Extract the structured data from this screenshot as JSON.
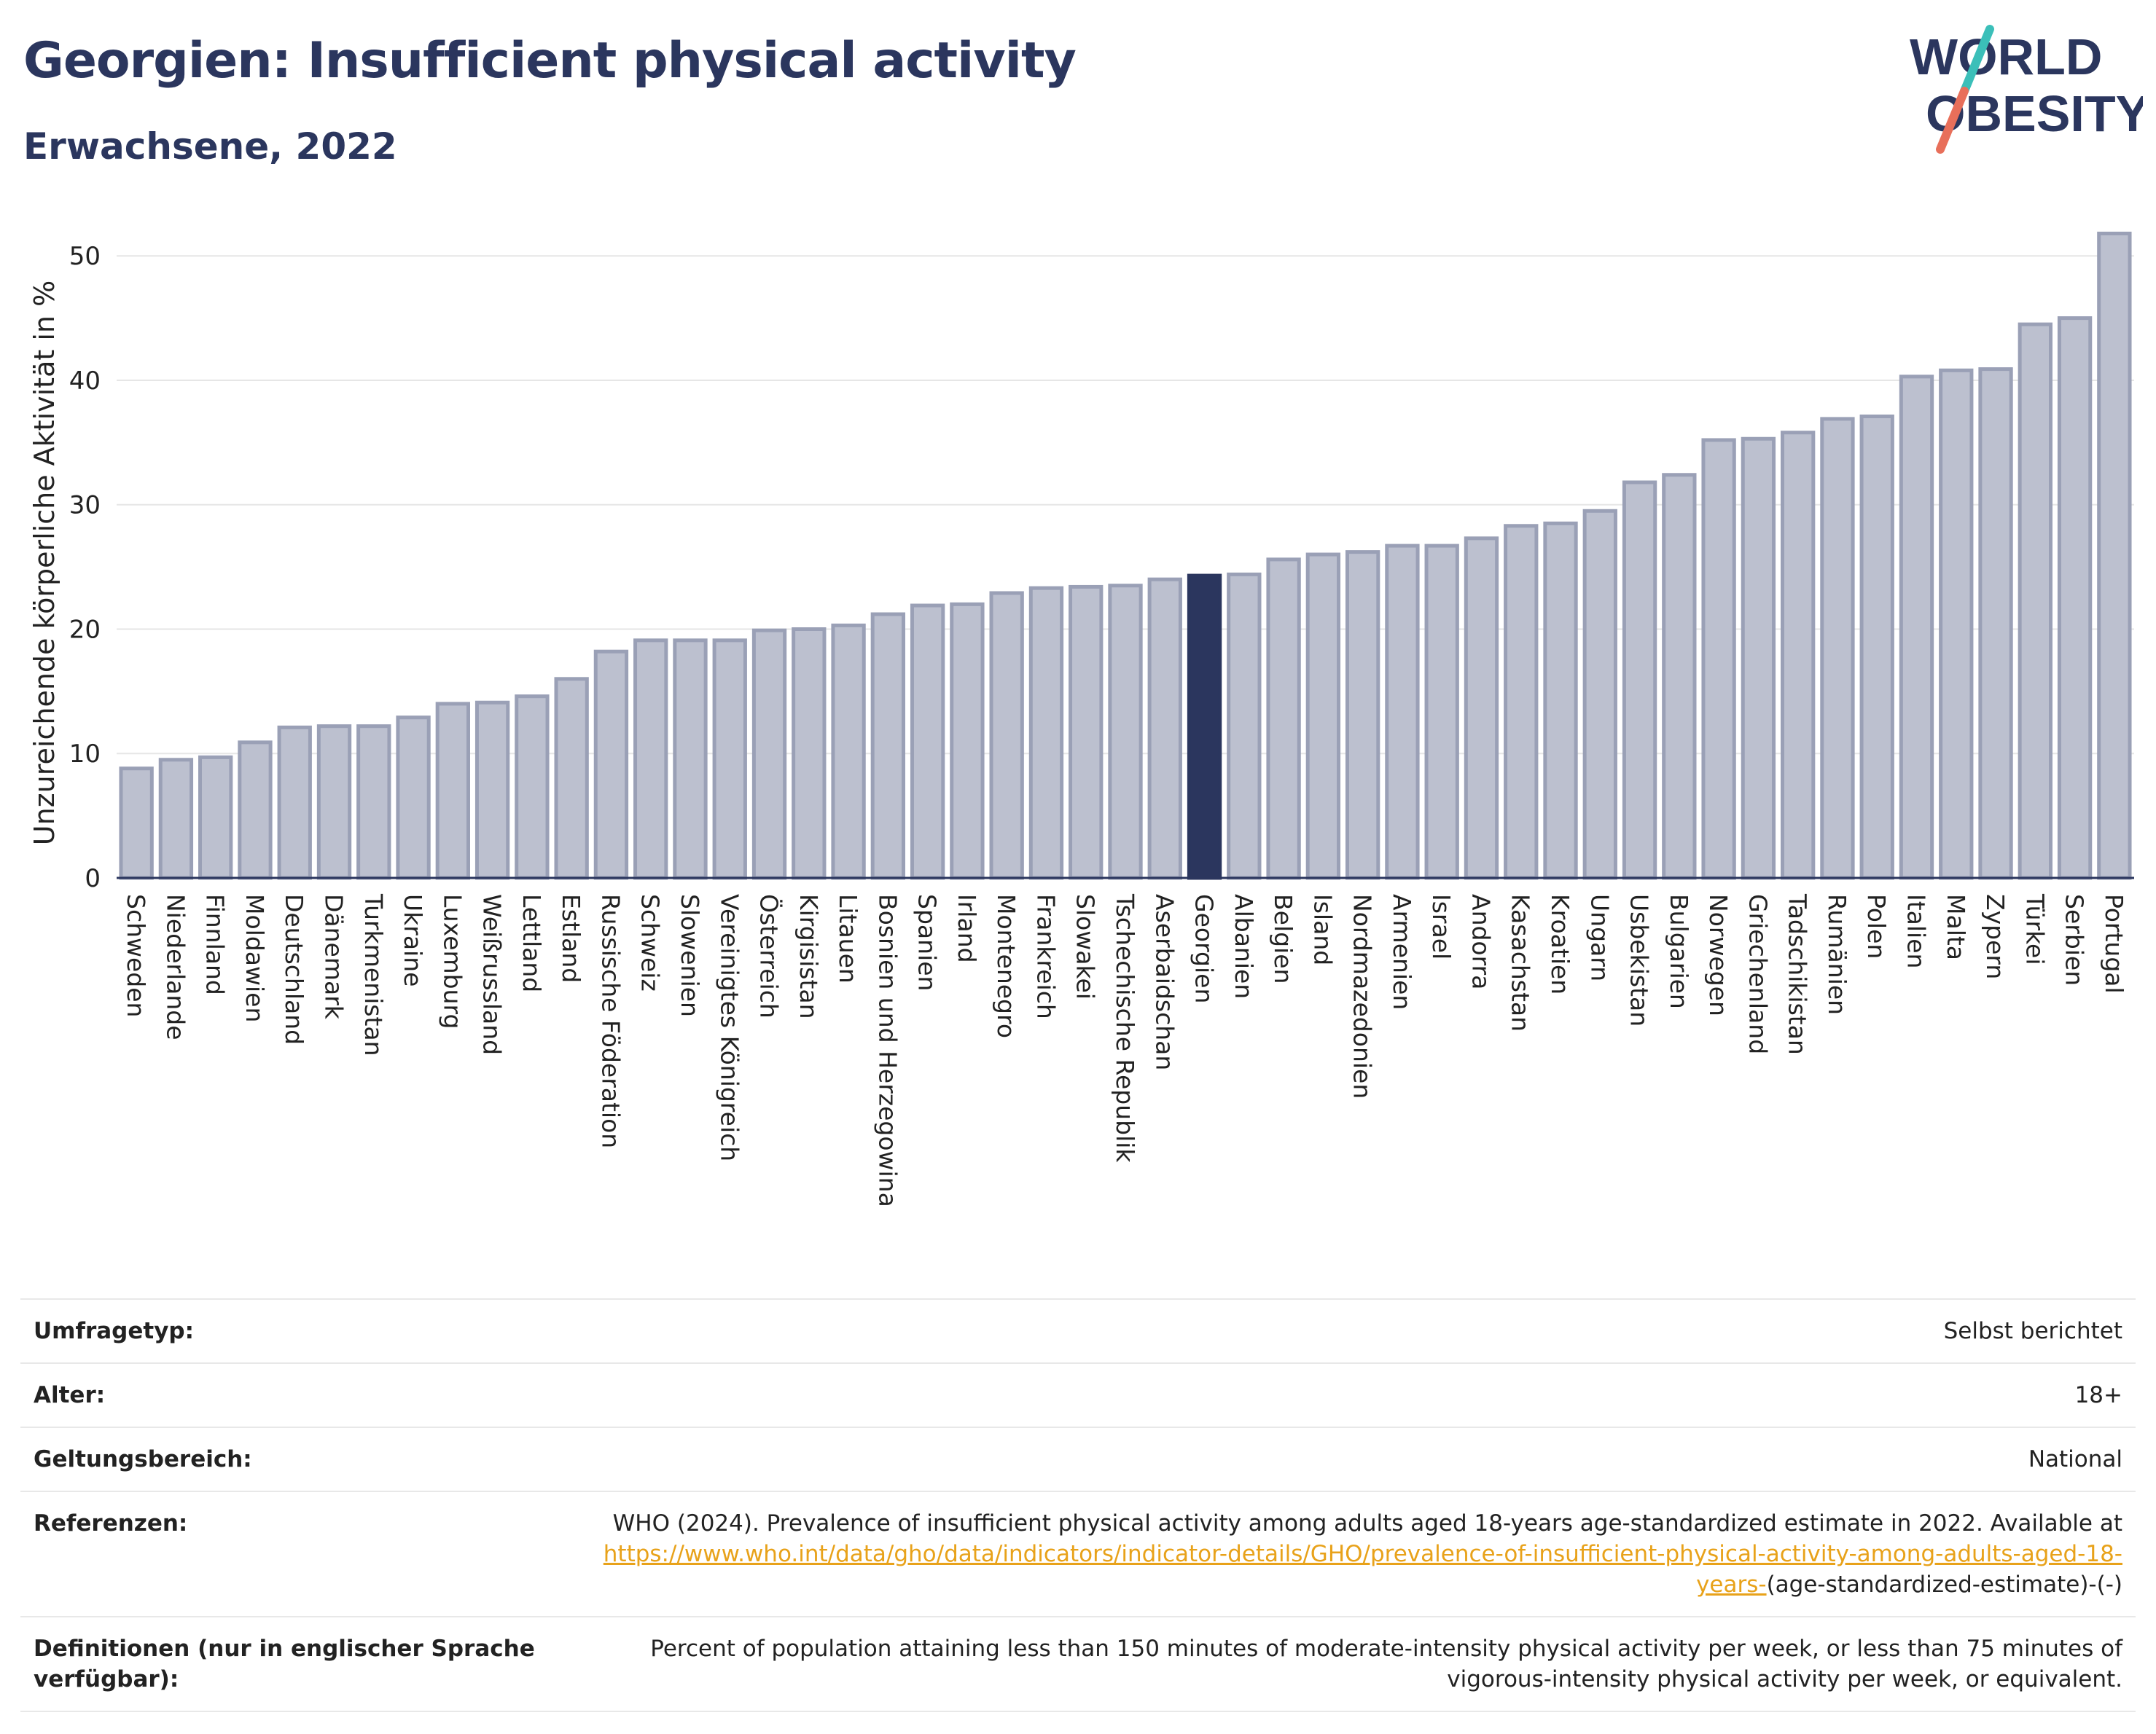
{
  "header": {
    "title": "Georgien: Insufficient physical activity",
    "subtitle": "Erwachsene, 2022",
    "logo_line1": "WORLD",
    "logo_line2": "OBESITY"
  },
  "colors": {
    "bar": "#bcc0cf",
    "bar_border": "#9aa0b6",
    "highlight": "#2b365e",
    "grid": "#e6e6e6",
    "text": "#222222",
    "link": "#e8a21a",
    "logo_teal": "#3bbfb9",
    "logo_coral": "#e86f5a"
  },
  "chart_data": {
    "type": "bar",
    "ylabel": "Unzureichende körperliche Aktivität in %",
    "ylim": [
      0,
      53
    ],
    "yticks": [
      0,
      10,
      20,
      30,
      40,
      50
    ],
    "grid": true,
    "highlight": "Georgien",
    "categories": [
      "Schweden",
      "Niederlande",
      "Finnland",
      "Moldawien",
      "Deutschland",
      "Dänemark",
      "Turkmenistan",
      "Ukraine",
      "Luxemburg",
      "Weißrussland",
      "Lettland",
      "Estland",
      "Russische Föderation",
      "Schweiz",
      "Slowenien",
      "Vereinigtes Königreich",
      "Österreich",
      "Kirgisistan",
      "Litauen",
      "Bosnien und Herzegowina",
      "Spanien",
      "Irland",
      "Montenegro",
      "Frankreich",
      "Slowakei",
      "Tschechische Republik",
      "Aserbaidschan",
      "Georgien",
      "Albanien",
      "Belgien",
      "Island",
      "Nordmazedonien",
      "Armenien",
      "Israel",
      "Andorra",
      "Kasachstan",
      "Kroatien",
      "Ungarn",
      "Usbekistan",
      "Bulgarien",
      "Norwegen",
      "Griechenland",
      "Tadschikistan",
      "Rumänien",
      "Polen",
      "Italien",
      "Malta",
      "Zypern",
      "Türkei",
      "Serbien",
      "Portugal"
    ],
    "values": [
      8.8,
      9.5,
      9.7,
      10.9,
      12.1,
      12.2,
      12.2,
      12.9,
      14.0,
      14.1,
      14.6,
      16.0,
      18.2,
      19.1,
      19.1,
      19.1,
      19.9,
      20.0,
      20.3,
      21.2,
      21.9,
      22.0,
      22.9,
      23.3,
      23.4,
      23.5,
      24.0,
      24.3,
      24.4,
      25.6,
      26.0,
      26.2,
      26.7,
      26.7,
      27.3,
      28.3,
      28.5,
      29.5,
      31.8,
      32.4,
      35.2,
      35.3,
      35.8,
      36.9,
      37.1,
      40.3,
      40.8,
      40.9,
      44.5,
      45.0,
      51.8
    ]
  },
  "meta": {
    "rows": [
      {
        "label": "Umfragetyp:",
        "value": "Selbst berichtet"
      },
      {
        "label": "Alter:",
        "value": "18+"
      },
      {
        "label": "Geltungsbereich:",
        "value": "National"
      }
    ],
    "ref_label": "Referenzen:",
    "ref_text": "WHO (2024). Prevalence of insufficient physical activity among adults aged 18-years age-standardized estimate in 2022. Available at",
    "ref_link": "https://www.who.int/data/gho/data/indicators/indicator-details/GHO/prevalence-of-insufficient-physical-activity-among-adults-aged-18-years-",
    "ref_tail": "(age-standardized-estimate)-(-)",
    "def_label": "Definitionen (nur in englischer Sprache verfügbar):",
    "def_text": "Percent of population attaining less than 150 minutes of moderate-intensity physical activity per week, or less than 75 minutes of vigorous-intensity physical activity per week, or equivalent."
  }
}
